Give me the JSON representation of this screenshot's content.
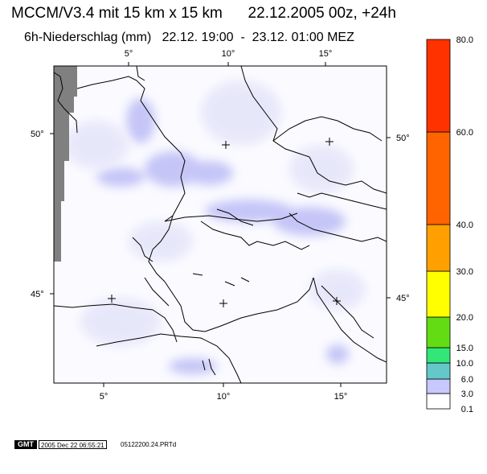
{
  "title": "MCCM/V3.4 mit 15 km x 15 km      22.12.2005 00z, +24h",
  "subtitle": "6h-Niederschlag (mm)   22.12. 19:00  -  23.12. 01:00 MEZ",
  "axes": {
    "top_lon_labels": [
      "5°",
      "10°",
      "15°"
    ],
    "bottom_lon_labels": [
      "5°",
      "10°",
      "15°"
    ],
    "left_lat_labels": [
      "50°",
      "45°"
    ],
    "right_lat_labels": [
      "50°",
      "45°"
    ]
  },
  "color_scale": {
    "levels": [
      "0.1",
      "3.0",
      "6.0",
      "10.0",
      "15.0",
      "20.0",
      "30.0",
      "40.0",
      "60.0",
      "80.0"
    ],
    "colors": [
      "#ffffff",
      "#c8c8ff",
      "#64c8c8",
      "#32e678",
      "#64dc14",
      "#ffff00",
      "#ffa000",
      "#ff6400",
      "#ff3200"
    ]
  },
  "footer": {
    "gmt_logo": "GMT",
    "timestamp": "2005 Dec 22 06:55:21",
    "file": "05122200.24.PRTd"
  }
}
